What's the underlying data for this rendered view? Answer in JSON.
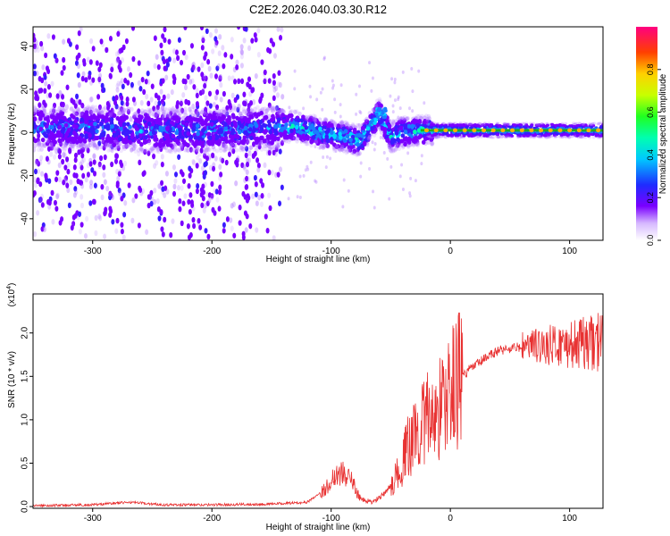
{
  "title": "C2E2.2026.040.03.30.R12",
  "chart_data": [
    {
      "type": "heatmap",
      "xlabel": "Height of straight line (km)",
      "ylabel": "Frequency (Hz)",
      "xlim": [
        -350,
        128
      ],
      "ylim": [
        -50,
        49
      ],
      "x_ticks": [
        -300,
        -200,
        -100,
        0,
        100
      ],
      "y_ticks": [
        -40,
        -20,
        0,
        20,
        40
      ],
      "colorbar": {
        "label": "Normalized spectral amplitude",
        "range": [
          0,
          1
        ],
        "ticks": [
          0.0,
          0.2,
          0.4,
          0.6,
          0.8
        ]
      },
      "ridge": [
        {
          "x": -350,
          "f": 2
        },
        {
          "x": -300,
          "f": 2
        },
        {
          "x": -250,
          "f": 1
        },
        {
          "x": -200,
          "f": 1
        },
        {
          "x": -150,
          "f": 2
        },
        {
          "x": -130,
          "f": 3
        },
        {
          "x": -110,
          "f": 0
        },
        {
          "x": -90,
          "f": -2
        },
        {
          "x": -75,
          "f": -4
        },
        {
          "x": -60,
          "f": 9
        },
        {
          "x": -50,
          "f": -2
        },
        {
          "x": -40,
          "f": 0
        },
        {
          "x": -20,
          "f": 1
        },
        {
          "x": 0,
          "f": 1
        },
        {
          "x": 128,
          "f": 1
        }
      ]
    },
    {
      "type": "line",
      "xlabel": "Height of straight line (km)",
      "ylabel": "SNR (10 * v/v)",
      "y_multiplier": "(x10",
      "y_multiplier_exp": "4",
      "y_multiplier_close": ")",
      "xlim": [
        -350,
        128
      ],
      "ylim": [
        -0.02,
        2.45
      ],
      "x_ticks": [
        -300,
        -200,
        -100,
        0,
        100
      ],
      "y_ticks": [
        0.0,
        0.5,
        1.0,
        1.5,
        2.0
      ],
      "color": "#e83232",
      "envelope": [
        {
          "x": -350,
          "y": 0.01
        },
        {
          "x": -300,
          "y": 0.02
        },
        {
          "x": -270,
          "y": 0.05
        },
        {
          "x": -240,
          "y": 0.02
        },
        {
          "x": -200,
          "y": 0.02
        },
        {
          "x": -150,
          "y": 0.03
        },
        {
          "x": -120,
          "y": 0.05
        },
        {
          "x": -105,
          "y": 0.2
        },
        {
          "x": -95,
          "y": 0.4
        },
        {
          "x": -85,
          "y": 0.35
        },
        {
          "x": -75,
          "y": 0.08
        },
        {
          "x": -65,
          "y": 0.05
        },
        {
          "x": -55,
          "y": 0.15
        },
        {
          "x": -45,
          "y": 0.35
        },
        {
          "x": -35,
          "y": 0.7
        },
        {
          "x": -25,
          "y": 0.95
        },
        {
          "x": -15,
          "y": 1.05
        },
        {
          "x": -5,
          "y": 1.2
        },
        {
          "x": 5,
          "y": 1.45
        },
        {
          "x": 20,
          "y": 1.62
        },
        {
          "x": 40,
          "y": 1.8
        },
        {
          "x": 60,
          "y": 1.84
        },
        {
          "x": 80,
          "y": 1.86
        },
        {
          "x": 100,
          "y": 1.86
        },
        {
          "x": 128,
          "y": 1.9
        }
      ]
    }
  ]
}
